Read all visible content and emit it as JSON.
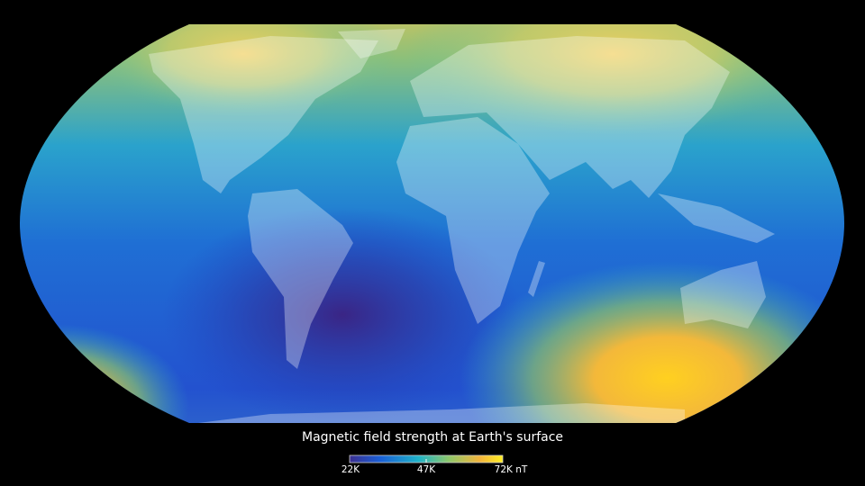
{
  "legend": {
    "title": "Magnetic field strength at Earth's surface",
    "ticks": [
      "22K",
      "47K",
      "72K nT"
    ],
    "range": [
      22000,
      72000
    ],
    "unit": "nT",
    "colors": [
      "#3b2f91",
      "#1a5fd6",
      "#1fb3c9",
      "#8fc86a",
      "#f3b43c",
      "#ffee22"
    ]
  },
  "map": {
    "projection": "Robinson-like",
    "field_low_color": "#3a2a8c",
    "field_mid_color": "#1e72d2",
    "field_high_color": "#f4c430"
  }
}
